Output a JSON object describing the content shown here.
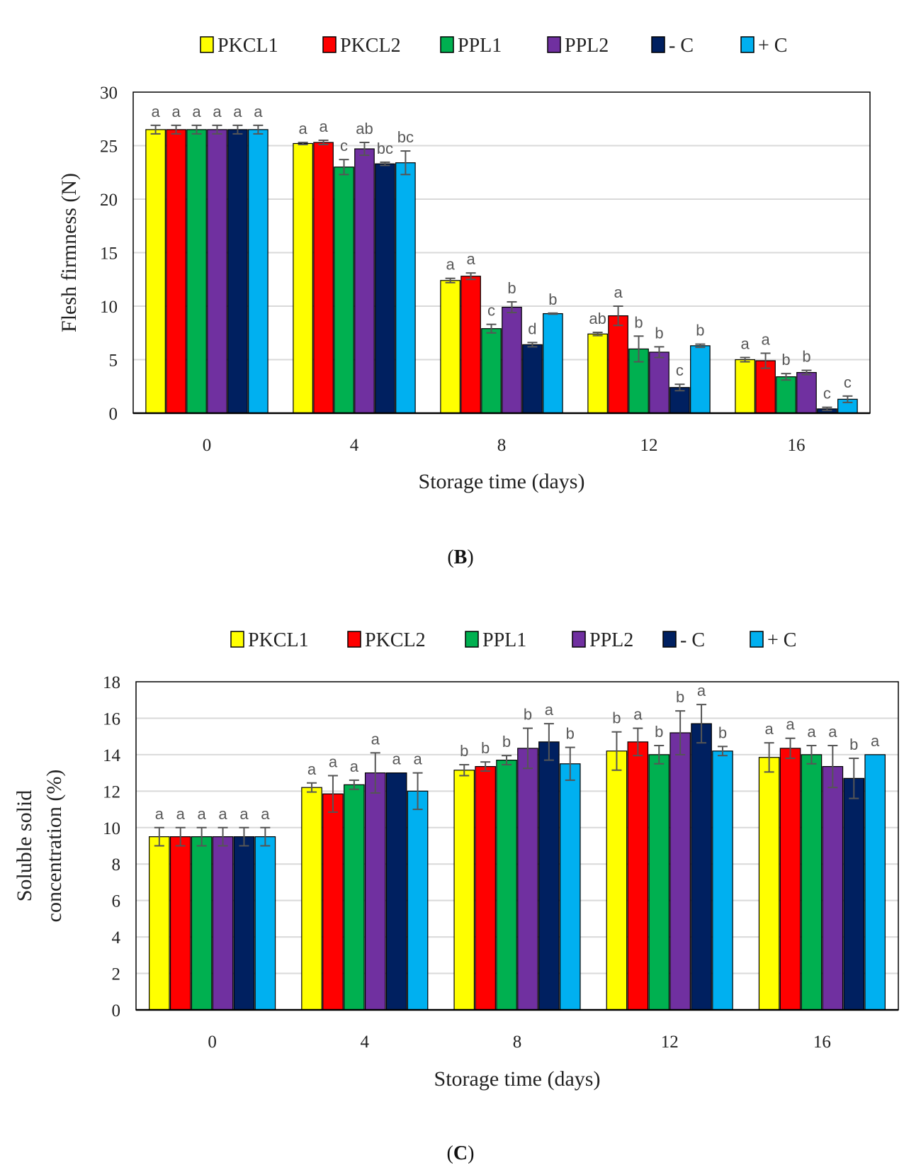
{
  "colors": {
    "PKCL1": "#FFFF00",
    "PKCL2": "#FF0000",
    "PPL1": "#00B050",
    "PPL2": "#7030A0",
    "- C": "#002060",
    "+ C": "#00B0F0"
  },
  "chart_data": [
    {
      "type": "bar",
      "panel_label": "B",
      "xlabel": "Storage time (days)",
      "ylabel": [
        "Flesh firmness (N)"
      ],
      "categories": [
        "0",
        "4",
        "8",
        "12",
        "16"
      ],
      "ylim": [
        0,
        30
      ],
      "yticks": [
        0,
        5,
        10,
        15,
        20,
        25,
        30
      ],
      "grid": true,
      "legend": "top",
      "series": [
        {
          "name": "PKCL1",
          "values": [
            26.5,
            25.2,
            12.4,
            7.4,
            5.0
          ],
          "errors": [
            0.4,
            0.1,
            0.2,
            0.15,
            0.2
          ],
          "letters": [
            "a",
            "a",
            "a",
            "ab",
            "a"
          ]
        },
        {
          "name": "PKCL2",
          "values": [
            26.5,
            25.3,
            12.8,
            9.1,
            4.9
          ],
          "errors": [
            0.4,
            0.2,
            0.3,
            0.9,
            0.7
          ],
          "letters": [
            "a",
            "a",
            "a",
            "a",
            "a"
          ]
        },
        {
          "name": "PPL1",
          "values": [
            26.5,
            23.0,
            7.9,
            6.0,
            3.4
          ],
          "errors": [
            0.4,
            0.7,
            0.4,
            1.2,
            0.3
          ],
          "letters": [
            "a",
            "c",
            "c",
            "b",
            "b"
          ]
        },
        {
          "name": "PPL2",
          "values": [
            26.5,
            24.7,
            9.9,
            5.7,
            3.8
          ],
          "errors": [
            0.4,
            0.6,
            0.5,
            0.5,
            0.2
          ],
          "letters": [
            "a",
            "ab",
            "b",
            "b",
            "b"
          ]
        },
        {
          "name": "- C",
          "values": [
            26.5,
            23.3,
            6.4,
            2.4,
            0.4
          ],
          "errors": [
            0.4,
            0.15,
            0.2,
            0.3,
            0.15
          ],
          "letters": [
            "a",
            "bc",
            "d",
            "c",
            "c"
          ]
        },
        {
          "name": "+ C",
          "values": [
            26.5,
            23.4,
            9.3,
            6.3,
            1.3
          ],
          "errors": [
            0.4,
            1.1,
            0.05,
            0.15,
            0.3
          ],
          "letters": [
            "a",
            "bc",
            "b",
            "b",
            "c"
          ]
        }
      ]
    },
    {
      "type": "bar",
      "panel_label": "C",
      "xlabel": "Storage time (days)",
      "ylabel": [
        "Soluble solid",
        "concentration (%)"
      ],
      "categories": [
        "0",
        "4",
        "8",
        "12",
        "16"
      ],
      "ylim": [
        0,
        18
      ],
      "yticks": [
        0,
        2,
        4,
        6,
        8,
        10,
        12,
        14,
        16,
        18
      ],
      "grid": true,
      "legend": "top",
      "series": [
        {
          "name": "PKCL1",
          "values": [
            9.5,
            12.2,
            13.15,
            14.2,
            13.85
          ],
          "errors": [
            0.5,
            0.25,
            0.3,
            1.05,
            0.8
          ],
          "letters": [
            "a",
            "a",
            "b",
            "b",
            "a"
          ]
        },
        {
          "name": "PKCL2",
          "values": [
            9.5,
            11.85,
            13.35,
            14.7,
            14.35
          ],
          "errors": [
            0.5,
            1.0,
            0.25,
            0.75,
            0.55
          ],
          "letters": [
            "a",
            "a",
            "b",
            "a",
            "a"
          ]
        },
        {
          "name": "PPL1",
          "values": [
            9.5,
            12.35,
            13.7,
            14.0,
            14.0
          ],
          "errors": [
            0.5,
            0.25,
            0.25,
            0.5,
            0.5
          ],
          "letters": [
            "a",
            "a",
            "b",
            "b",
            "a"
          ]
        },
        {
          "name": "PPL2",
          "values": [
            9.5,
            13.0,
            14.35,
            15.2,
            13.35
          ],
          "errors": [
            0.5,
            1.1,
            1.1,
            1.2,
            1.15
          ],
          "letters": [
            "a",
            "a",
            "b",
            "b",
            "a"
          ]
        },
        {
          "name": "- C",
          "values": [
            9.5,
            13.0,
            14.7,
            15.7,
            12.7
          ],
          "errors": [
            0.5,
            0.0,
            1.0,
            1.05,
            1.1
          ],
          "letters": [
            "a",
            "a",
            "a",
            "a",
            "b"
          ]
        },
        {
          "name": "+ C",
          "values": [
            9.5,
            12.0,
            13.5,
            14.2,
            14.0
          ],
          "errors": [
            0.5,
            1.0,
            0.9,
            0.25,
            0.0
          ],
          "letters": [
            "a",
            "a",
            "b",
            "b",
            "a"
          ]
        }
      ]
    }
  ]
}
